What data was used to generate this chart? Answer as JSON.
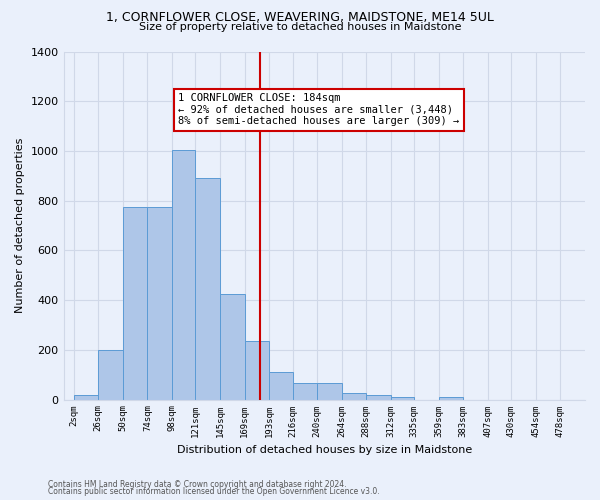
{
  "title": "1, CORNFLOWER CLOSE, WEAVERING, MAIDSTONE, ME14 5UL",
  "subtitle": "Size of property relative to detached houses in Maidstone",
  "xlabel": "Distribution of detached houses by size in Maidstone",
  "ylabel": "Number of detached properties",
  "footnote1": "Contains HM Land Registry data © Crown copyright and database right 2024.",
  "footnote2": "Contains public sector information licensed under the Open Government Licence v3.0.",
  "bin_labels": [
    "2sqm",
    "26sqm",
    "50sqm",
    "74sqm",
    "98sqm",
    "121sqm",
    "145sqm",
    "169sqm",
    "193sqm",
    "216sqm",
    "240sqm",
    "264sqm",
    "288sqm",
    "312sqm",
    "335sqm",
    "359sqm",
    "383sqm",
    "407sqm",
    "430sqm",
    "454sqm",
    "478sqm"
  ],
  "bin_lefts": [
    2,
    26,
    50,
    74,
    98,
    121,
    145,
    169,
    193,
    216,
    240,
    264,
    288,
    312,
    335,
    359,
    383,
    407,
    430,
    454,
    478
  ],
  "bar_values": [
    20,
    200,
    775,
    775,
    1005,
    890,
    425,
    235,
    110,
    65,
    65,
    25,
    20,
    10,
    0,
    10,
    0,
    0,
    0,
    0,
    0
  ],
  "bar_color": "#aec6e8",
  "bar_edge_color": "#5b9bd5",
  "grid_color": "#d0d8e8",
  "bg_color": "#eaf0fb",
  "vline_x": 184,
  "vline_color": "#cc0000",
  "annotation_title": "1 CORNFLOWER CLOSE: 184sqm",
  "annotation_line1": "← 92% of detached houses are smaller (3,448)",
  "annotation_line2": "8% of semi-detached houses are larger (309) →",
  "annotation_box_color": "#ffffff",
  "annotation_box_edge": "#cc0000",
  "ylim": [
    0,
    1400
  ],
  "yticks": [
    0,
    200,
    400,
    600,
    800,
    1000,
    1200,
    1400
  ],
  "xlim_left": 2,
  "xlim_right": 502
}
